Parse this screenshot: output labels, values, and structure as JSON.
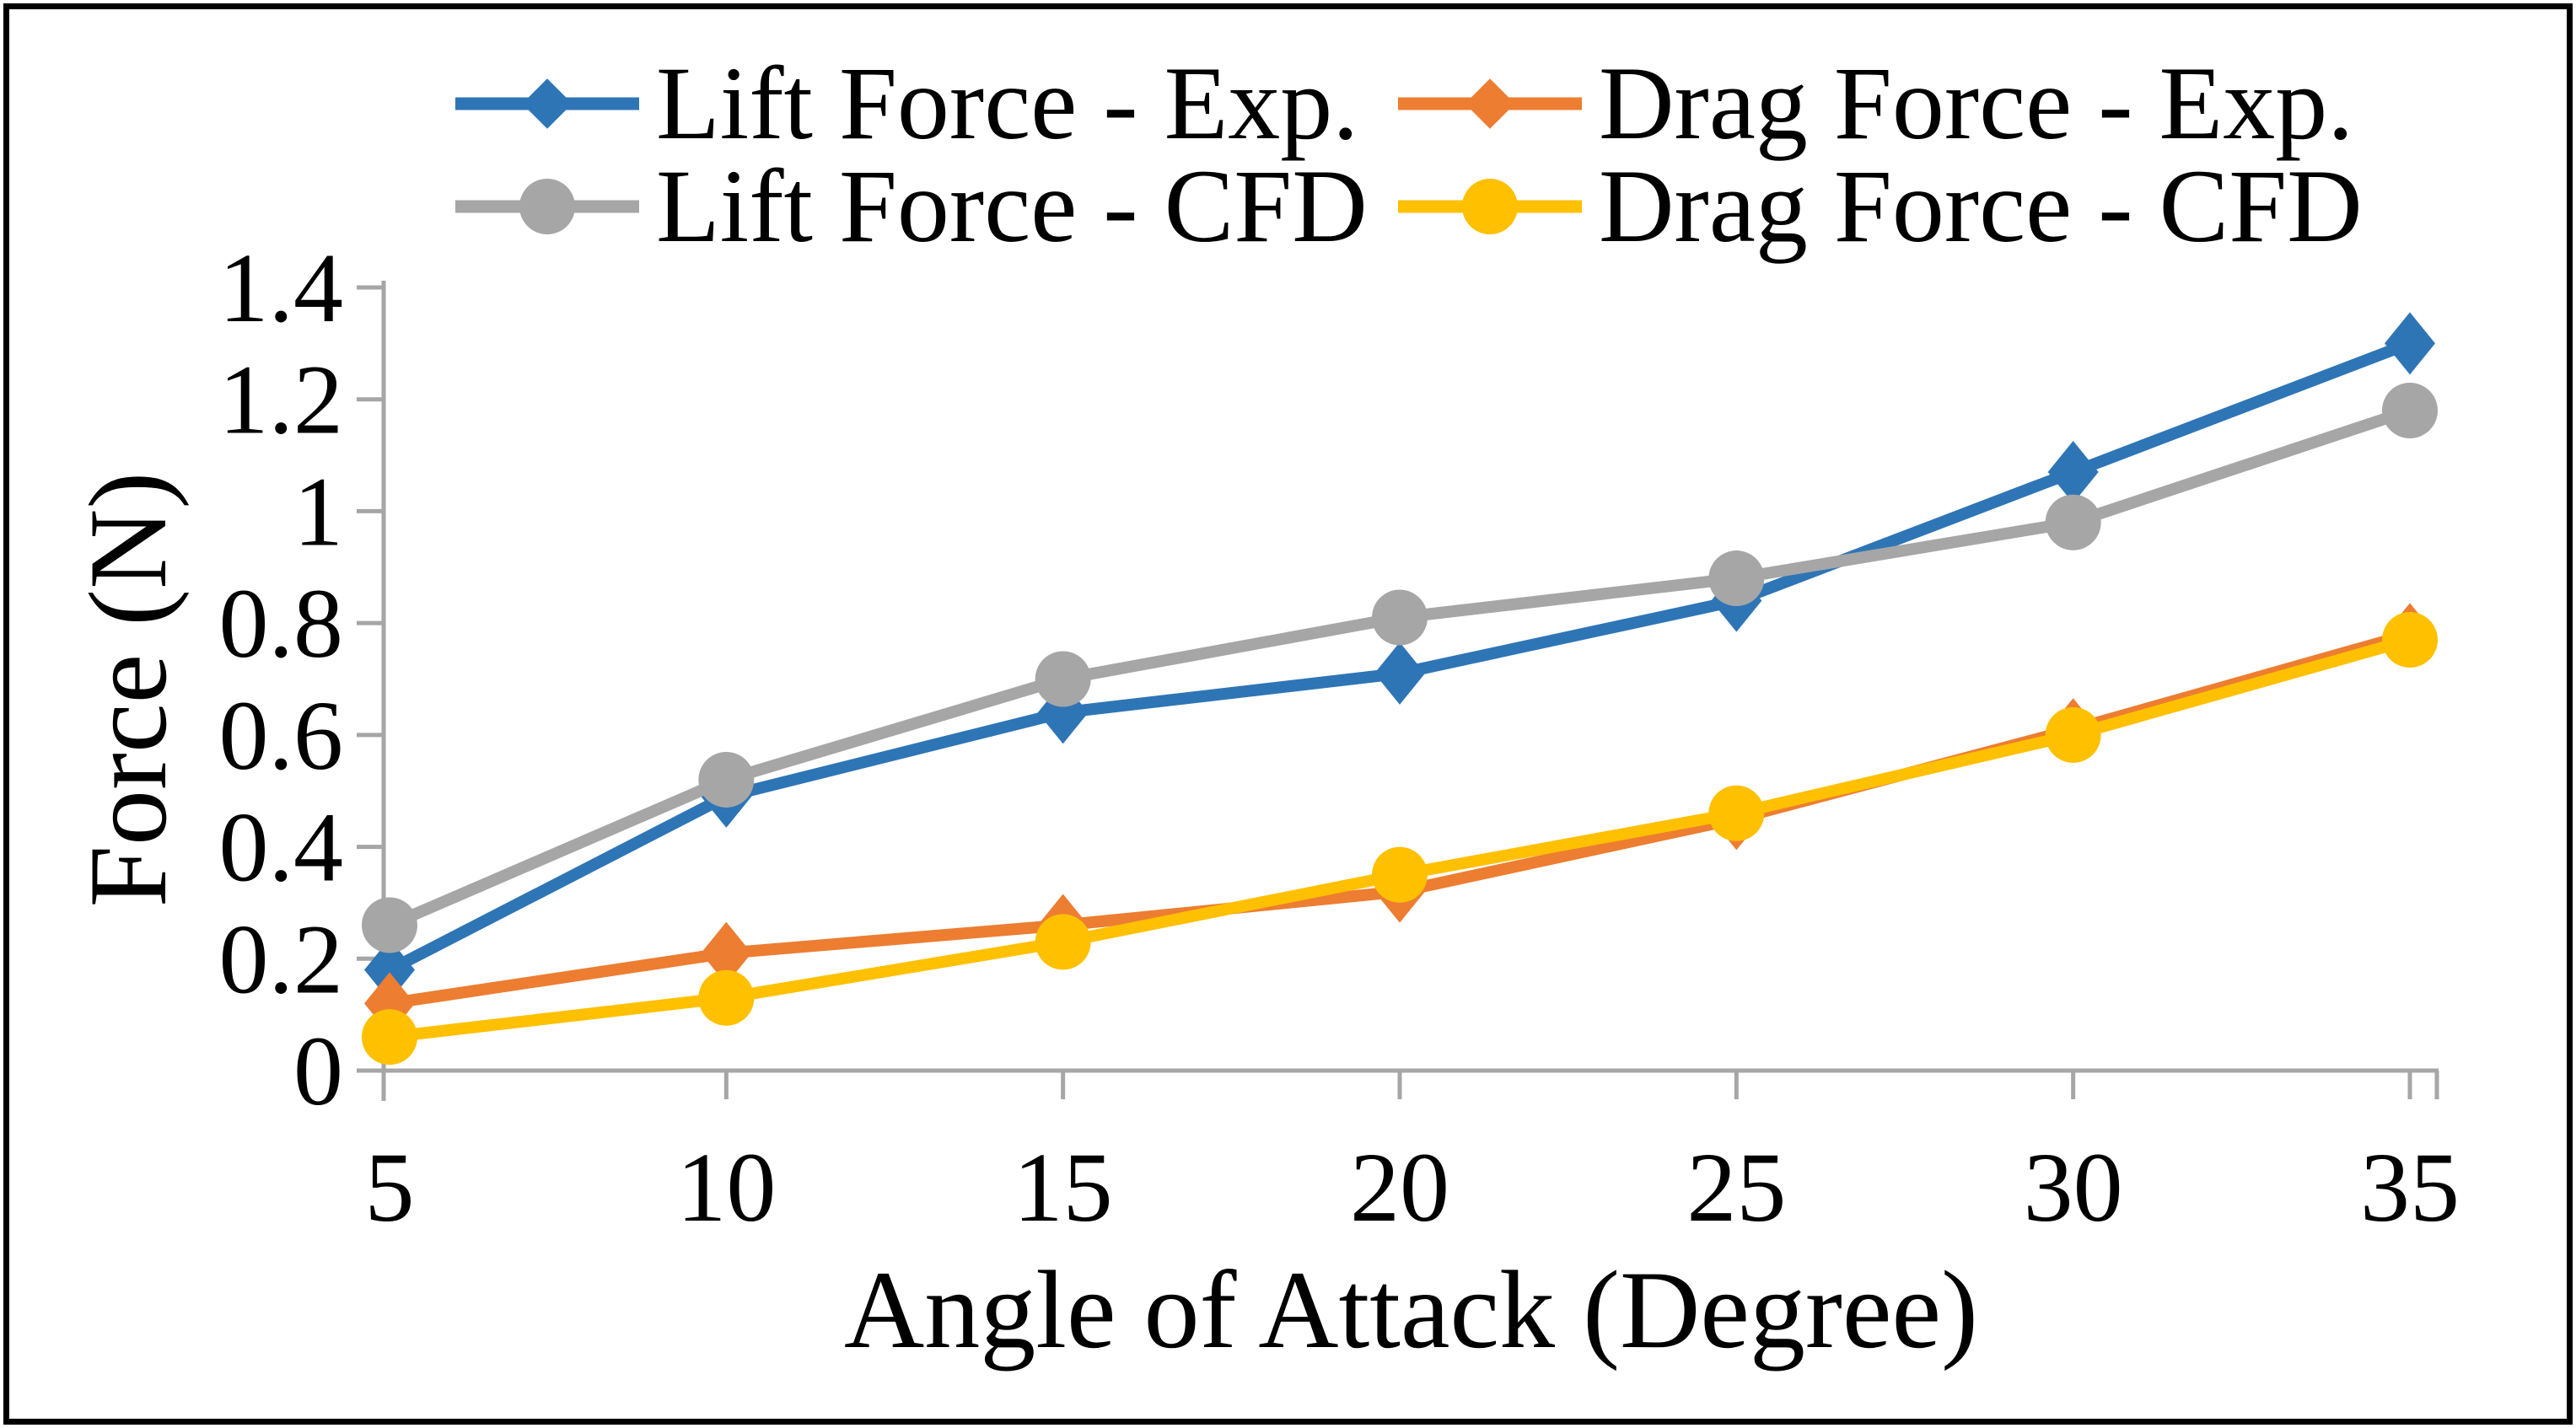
{
  "figure": {
    "background": "#ffffff",
    "border_color": "#000000",
    "text_color": "#000000"
  },
  "chart_data": {
    "type": "line",
    "title": "",
    "xlabel": "Angle of Attack (Degree)",
    "ylabel": "Force (N)",
    "x": [
      5,
      10,
      15,
      20,
      25,
      30,
      35
    ],
    "xtick_labels": [
      "5",
      "10",
      "15",
      "20",
      "25",
      "30",
      "35"
    ],
    "ylim": [
      0,
      1.4
    ],
    "ytick_values": [
      0,
      0.2,
      0.4,
      0.6,
      0.8,
      1,
      1.2,
      1.4
    ],
    "ytick_labels": [
      "0",
      "0.2",
      "0.4",
      "0.6",
      "0.8",
      "1",
      "1.2",
      "1.4"
    ],
    "grid": false,
    "legend_position": "top",
    "axis_color": "#a6a6a6",
    "series": [
      {
        "name": "Lift Force - Exp.",
        "marker": "diamond",
        "color": "#2e75b6",
        "values": [
          0.18,
          0.49,
          0.64,
          0.71,
          0.84,
          1.07,
          1.3
        ]
      },
      {
        "name": "Lift Force - CFD",
        "marker": "circle",
        "color": "#a6a6a6",
        "values": [
          0.26,
          0.52,
          0.7,
          0.81,
          0.88,
          0.98,
          1.18
        ]
      },
      {
        "name": "Drag Force - Exp.",
        "marker": "diamond",
        "color": "#ed7d31",
        "values": [
          0.12,
          0.21,
          0.26,
          0.32,
          0.45,
          0.61,
          0.78
        ]
      },
      {
        "name": "Drag Force - CFD",
        "marker": "circle",
        "color": "#ffc000",
        "values": [
          0.06,
          0.13,
          0.23,
          0.35,
          0.46,
          0.6,
          0.77
        ]
      }
    ]
  }
}
